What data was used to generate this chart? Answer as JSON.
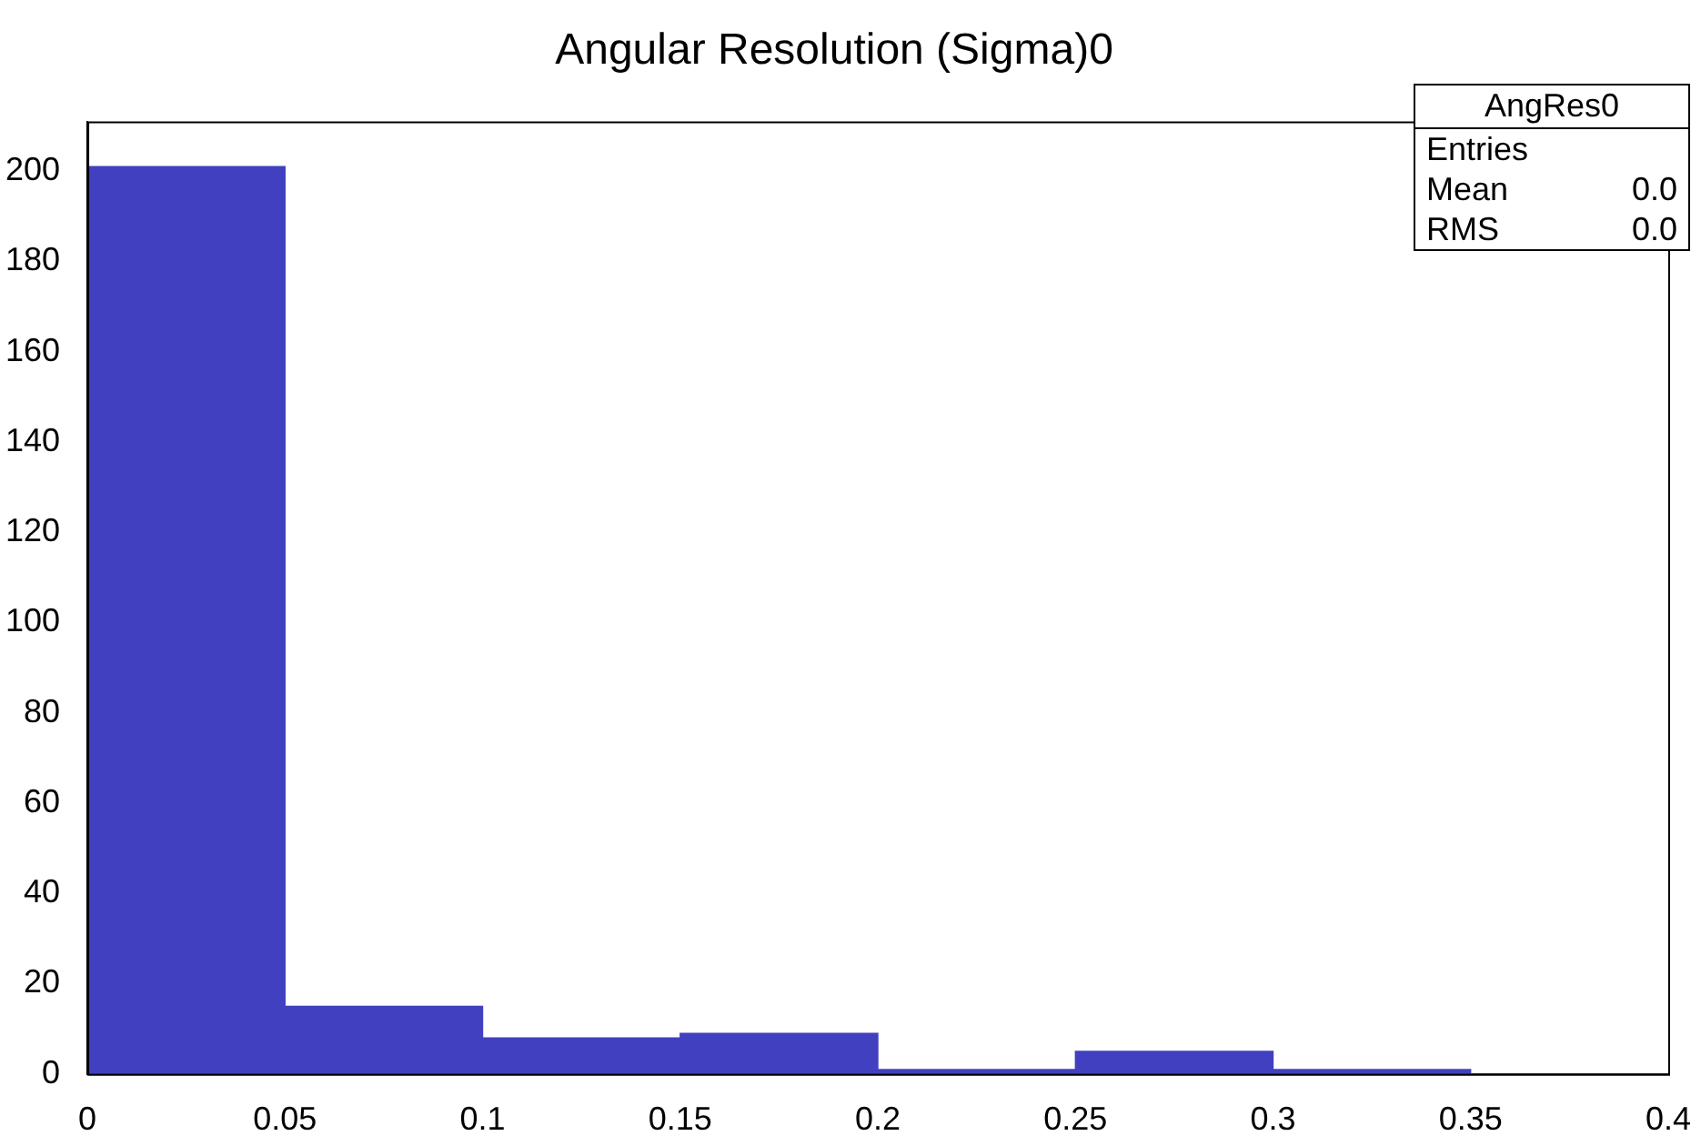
{
  "chart_data": {
    "type": "histogram",
    "title": "Angular Resolution (Sigma)0",
    "bins": [
      0,
      0.05,
      0.1,
      0.15,
      0.2,
      0.25,
      0.3,
      0.35,
      0.4
    ],
    "values": [
      201,
      15,
      8,
      9,
      1,
      5,
      1,
      0
    ],
    "color": "#4040c0",
    "xlim": [
      0,
      0.4
    ],
    "xticks": [
      0,
      0.05,
      0.1,
      0.15,
      0.2,
      0.25,
      0.3,
      0.35,
      0.4
    ],
    "ylim": [
      0,
      211
    ],
    "yticks": [
      0,
      20,
      40,
      60,
      80,
      100,
      120,
      140,
      160,
      180,
      200
    ],
    "grid": false,
    "legend": false,
    "annotations": [
      "AngRes0",
      "Entries",
      "Mean",
      "0.0",
      "RMS",
      "0.0"
    ]
  }
}
